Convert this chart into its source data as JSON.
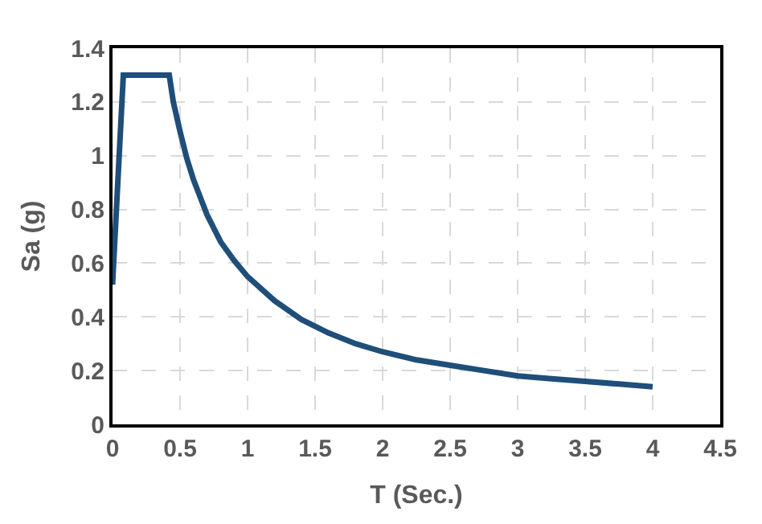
{
  "chart_data": {
    "type": "line",
    "xlabel": "T (Sec.)",
    "ylabel": "Sa (g)",
    "x": [
      0,
      0.08,
      0.42,
      0.45,
      0.5,
      0.55,
      0.6,
      0.7,
      0.8,
      0.9,
      1.0,
      1.2,
      1.4,
      1.6,
      1.8,
      2.0,
      2.25,
      2.5,
      2.75,
      3.0,
      3.25,
      3.5,
      3.75,
      4.0
    ],
    "series": [
      {
        "color": "#1f4e79",
        "values": [
          0.52,
          1.3,
          1.3,
          1.2,
          1.09,
          0.99,
          0.91,
          0.78,
          0.68,
          0.61,
          0.55,
          0.46,
          0.39,
          0.34,
          0.3,
          0.27,
          0.24,
          0.22,
          0.2,
          0.18,
          0.17,
          0.16,
          0.15,
          0.14
        ]
      }
    ],
    "xlim": [
      0,
      4.5
    ],
    "xticks": [
      0,
      0.5,
      1,
      1.5,
      2,
      2.5,
      3,
      3.5,
      4,
      4.5
    ],
    "ylim": [
      0,
      1.4
    ],
    "yticks": [
      0,
      0.2,
      0.4,
      0.6,
      0.8,
      1,
      1.2,
      1.4
    ],
    "grid": true,
    "marker": "none",
    "line_style": "solid"
  }
}
